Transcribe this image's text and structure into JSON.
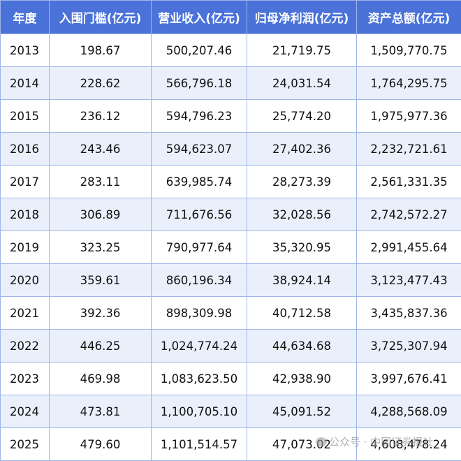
{
  "table": {
    "headers": [
      "年度",
      "入围门槛(亿元)",
      "营业收入(亿元)",
      "归母净利润(亿元)",
      "资产总额(亿元)"
    ],
    "rows": [
      [
        "2013",
        "198.67",
        "500,207.46",
        "21,719.75",
        "1,509,770.75"
      ],
      [
        "2014",
        "228.62",
        "566,796.18",
        "24,031.54",
        "1,764,295.75"
      ],
      [
        "2015",
        "236.12",
        "594,796.23",
        "25,774.20",
        "1,975,977.36"
      ],
      [
        "2016",
        "243.46",
        "594,623.07",
        "27,402.36",
        "2,232,721.61"
      ],
      [
        "2017",
        "283.11",
        "639,985.74",
        "28,273.39",
        "2,561,331.35"
      ],
      [
        "2018",
        "306.89",
        "711,676.56",
        "32,028.56",
        "2,742,572.27"
      ],
      [
        "2019",
        "323.25",
        "790,977.64",
        "35,320.95",
        "2,991,455.64"
      ],
      [
        "2020",
        "359.61",
        "860,196.34",
        "38,924.14",
        "3,123,477.43"
      ],
      [
        "2021",
        "392.36",
        "898,309.98",
        "40,712.58",
        "3,435,837.36"
      ],
      [
        "2022",
        "446.25",
        "1,024,774.24",
        "44,634.68",
        "3,725,307.94"
      ],
      [
        "2023",
        "469.98",
        "1,083,623.50",
        "42,938.90",
        "3,997,676.41"
      ],
      [
        "2024",
        "473.81",
        "1,100,705.10",
        "45,091.52",
        "4,288,568.09"
      ],
      [
        "2025",
        "479.60",
        "1,101,514.57",
        "47,073.02",
        "4,608,478.24"
      ]
    ]
  },
  "watermark": {
    "icon": "wechat-icon",
    "text": "公众号 · 中国证券报社"
  },
  "colors": {
    "header_bg": "#4a72d8",
    "header_text": "#ffffff",
    "stripe_bg": "#eaf0fb",
    "border": "#9fb6ea"
  }
}
